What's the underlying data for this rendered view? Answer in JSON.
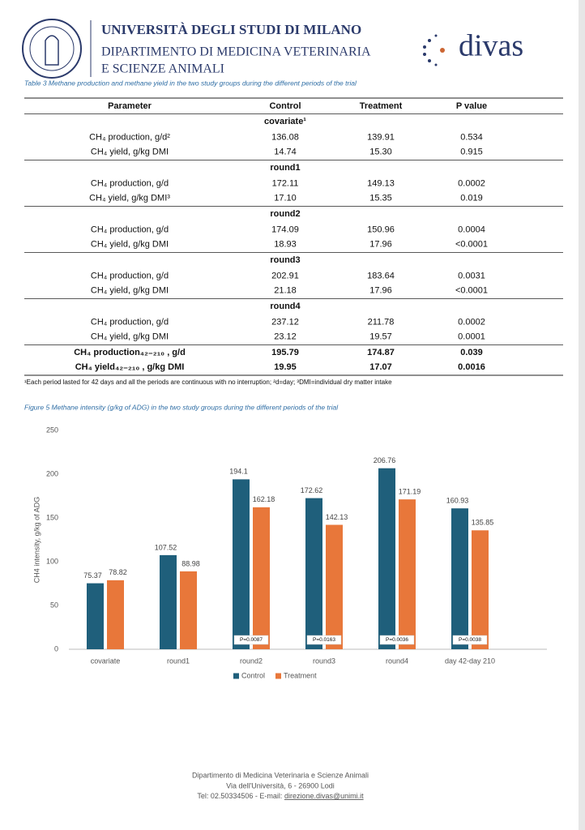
{
  "header": {
    "university": "UNIVERSITÀ DEGLI STUDI DI MILANO",
    "department": [
      "DIPARTIMENTO DI MEDICINA VETERINARIA",
      "E SCIENZE ANIMALI"
    ],
    "logo": "divas"
  },
  "table": {
    "caption": "Table 3 Methane production and methane yield in the two study groups during the different periods of the trial",
    "columns": [
      "Parameter",
      "Control",
      "Treatment",
      "P value"
    ],
    "groups": [
      {
        "name": "covariate¹",
        "rows": [
          [
            "CH₄ production, g/d²",
            "136.08",
            "139.91",
            "0.534"
          ],
          [
            "CH₄ yield, g/kg DMI",
            "14.74",
            "15.30",
            "0.915"
          ]
        ]
      },
      {
        "name": "round1",
        "rows": [
          [
            "CH₄ production, g/d",
            "172.11",
            "149.13",
            "0.0002"
          ],
          [
            "CH₄ yield, g/kg DMI³",
            "17.10",
            "15.35",
            "0.019"
          ]
        ]
      },
      {
        "name": "round2",
        "rows": [
          [
            "CH₄ production, g/d",
            "174.09",
            "150.96",
            "0.0004"
          ],
          [
            "CH₄ yield, g/kg DMI",
            "18.93",
            "17.96",
            "<0.0001"
          ]
        ]
      },
      {
        "name": "round3",
        "rows": [
          [
            "CH₄ production, g/d",
            "202.91",
            "183.64",
            "0.0031"
          ],
          [
            "CH₄ yield, g/kg DMI",
            "21.18",
            "17.96",
            "<0.0001"
          ]
        ]
      },
      {
        "name": "round4",
        "rows": [
          [
            "CH₄ production, g/d",
            "237.12",
            "211.78",
            "0.0002"
          ],
          [
            "CH₄ yield, g/kg DMI",
            "23.12",
            "19.57",
            "0.0001"
          ]
        ]
      },
      {
        "bold": true,
        "rows": [
          [
            "CH₄ production₄₂₋₂₁₀ , g/d",
            "195.79",
            "174.87",
            "0.039"
          ],
          [
            "CH₄ yield₄₂₋₂₁₀ , g/kg DMI",
            "19.95",
            "17.07",
            "0.0016"
          ]
        ]
      }
    ],
    "footnote": "¹Each period lasted for 42 days and all the periods are continuous with no interruption; ²d=day; ³DMI=individual dry matter intake"
  },
  "figure": {
    "caption": "Figure 5 Methane intensity (g/kg of ADG) in the two study groups during the different periods of the trial"
  },
  "chart_data": {
    "type": "bar",
    "ylabel": "CH4 intensity, g/kg of ADG",
    "categories": [
      "covariate",
      "round1",
      "round2",
      "round3",
      "round4",
      "day 42-day 210"
    ],
    "series": [
      {
        "name": "Control",
        "color": "#1f5f7b",
        "values": [
          75.37,
          107.52,
          194.1,
          172.62,
          206.76,
          160.93
        ]
      },
      {
        "name": "Treatment",
        "color": "#e8773a",
        "values": [
          78.82,
          88.98,
          162.18,
          142.13,
          171.19,
          135.85
        ]
      }
    ],
    "annotations": [
      null,
      null,
      "P=0.0087",
      "P=0.0163",
      "P=0.0036",
      "P=0.0038"
    ],
    "ylim": [
      0,
      250
    ],
    "yticks": [
      0,
      50,
      100,
      150,
      200,
      250
    ],
    "legend": "bottom"
  },
  "footer": {
    "lines": [
      "Dipartimento di Medicina Veterinaria e Scienze Animali",
      "Via dell'Università, 6 - 26900 Lodi"
    ],
    "tel": "Tel: 02.50334506 - E-mail: ",
    "email": "direzione.divas@unimi.it"
  }
}
